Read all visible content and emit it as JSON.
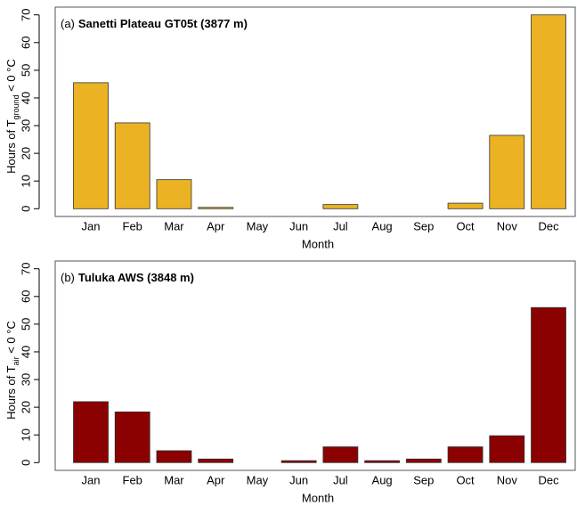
{
  "chart_data": [
    {
      "type": "bar",
      "panel": "(a)",
      "title": "Sanetti Plateau GT05t (3877 m)",
      "ylabel": "Hours of T",
      "ylabel_sub": "ground",
      "ylabel_end": " < 0 °C",
      "xlabel": "Month",
      "categories": [
        "Jan",
        "Feb",
        "Mar",
        "Apr",
        "May",
        "Jun",
        "Jul",
        "Aug",
        "Sep",
        "Oct",
        "Nov",
        "Dec"
      ],
      "values": [
        45.5,
        31,
        10.5,
        0.5,
        0,
        0,
        1.5,
        0,
        0,
        2,
        26.5,
        70
      ],
      "color": "#ebb223",
      "ylim": [
        -2.8,
        72.8
      ],
      "yticks": [
        0,
        10,
        20,
        30,
        40,
        50,
        60,
        70
      ]
    },
    {
      "type": "bar",
      "panel": "(b)",
      "title": "Tuluka AWS (3848 m)",
      "ylabel": "Hours of T",
      "ylabel_sub": "air",
      "ylabel_end": " < 0 °C",
      "xlabel": "Month",
      "categories": [
        "Jan",
        "Feb",
        "Mar",
        "Apr",
        "May",
        "Jun",
        "Jul",
        "Aug",
        "Sep",
        "Oct",
        "Nov",
        "Dec"
      ],
      "values": [
        22,
        18.3,
        4.3,
        1.3,
        0,
        0.7,
        5.7,
        0.7,
        1.3,
        5.7,
        9.7,
        56
      ],
      "color": "#8b0000",
      "ylim": [
        -2.8,
        72.8
      ],
      "yticks": [
        0,
        10,
        20,
        30,
        40,
        50,
        60,
        70
      ]
    }
  ]
}
